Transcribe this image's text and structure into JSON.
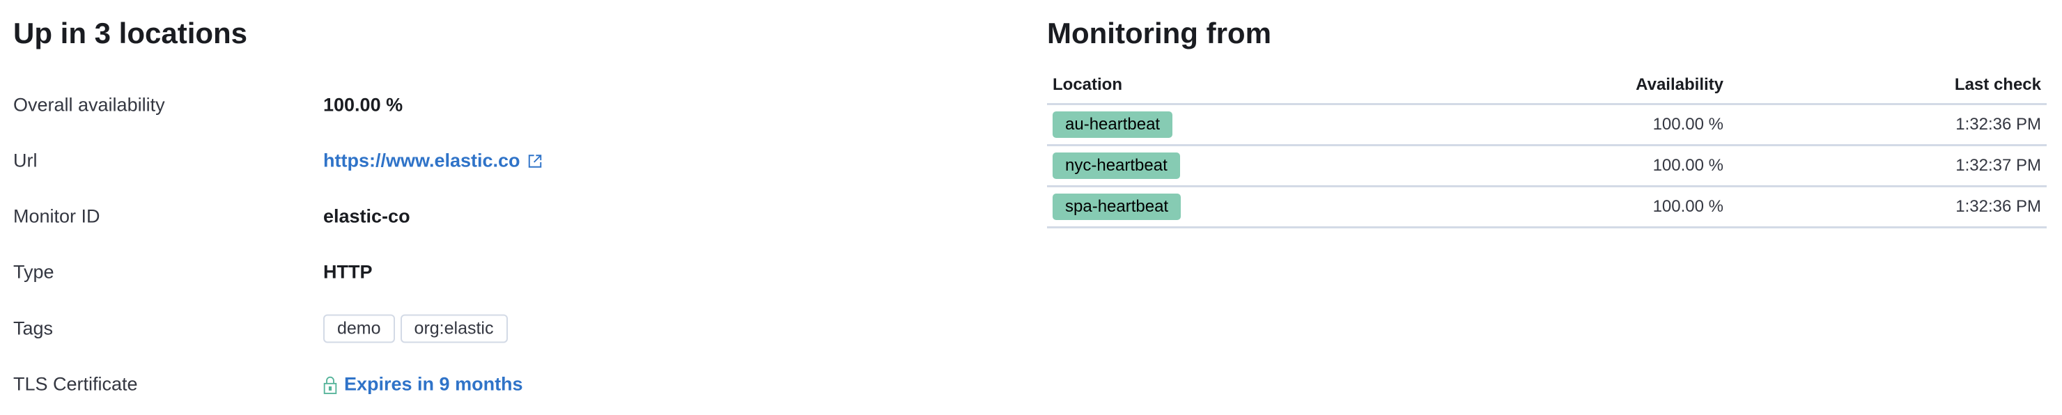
{
  "summary": {
    "title": "Up in 3 locations",
    "rows": [
      {
        "label": "Overall availability",
        "value": "100.00 %"
      },
      {
        "label": "Url",
        "value": "https://www.elastic.co"
      },
      {
        "label": "Monitor ID",
        "value": "elastic-co"
      },
      {
        "label": "Type",
        "value": "HTTP"
      },
      {
        "label": "Tags",
        "tags": [
          "demo",
          "org:elastic"
        ]
      },
      {
        "label": "TLS Certificate",
        "value": "Expires in 9 months"
      }
    ]
  },
  "monitoring": {
    "title": "Monitoring from",
    "columns": [
      "Location",
      "Availability",
      "Last check"
    ],
    "rows": [
      {
        "location": "au-heartbeat",
        "availability": "100.00 %",
        "last_check": "1:32:36 PM"
      },
      {
        "location": "nyc-heartbeat",
        "availability": "100.00 %",
        "last_check": "1:32:37 PM"
      },
      {
        "location": "spa-heartbeat",
        "availability": "100.00 %",
        "last_check": "1:32:36 PM"
      }
    ],
    "badge_color": "#86cbb3"
  },
  "colors": {
    "link": "#2f73c8",
    "lock_icon": "#54b399"
  }
}
